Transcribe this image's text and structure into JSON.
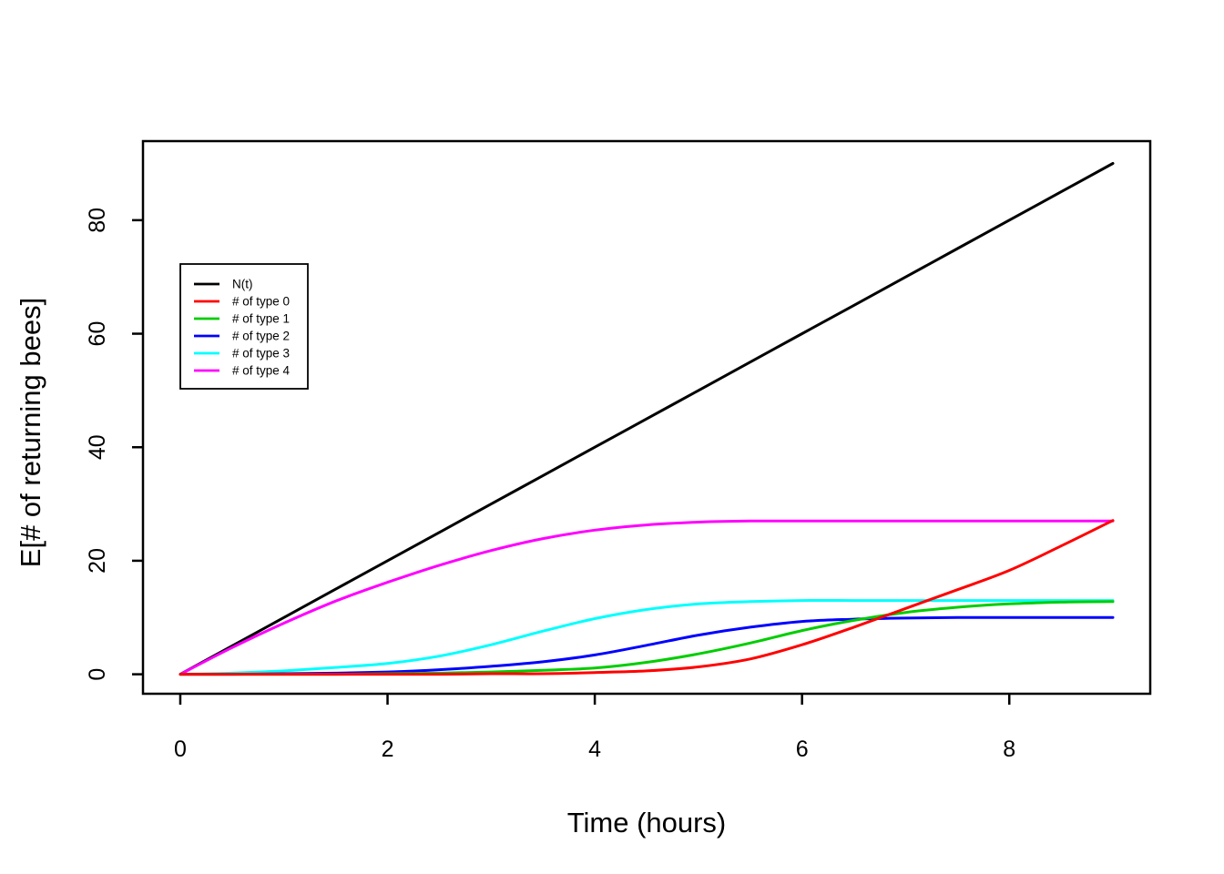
{
  "figure": {
    "background": "#ffffff",
    "axis_color": "#000000"
  },
  "chart_data": {
    "type": "line",
    "title": "",
    "xlabel": "Time (hours)",
    "ylabel": "E[# of returning bees]",
    "x_ticks": [
      0,
      2,
      4,
      6,
      8
    ],
    "y_ticks": [
      0,
      20,
      40,
      60,
      80
    ],
    "x_range": [
      -0.36,
      9.36
    ],
    "y_range": [
      -3.43,
      93.93
    ],
    "grid": "off",
    "legend_position": "upper-left",
    "x": [
      0,
      0.5,
      1,
      1.5,
      2,
      2.5,
      3,
      3.5,
      4,
      4.5,
      5,
      5.5,
      6,
      6.5,
      7,
      7.5,
      8,
      8.5,
      9
    ],
    "series": [
      {
        "name": "N(t)",
        "color": "#000000",
        "values": [
          0,
          5,
          10,
          15,
          20,
          25,
          30,
          35,
          40,
          45,
          50,
          55,
          60,
          65,
          70,
          75,
          80,
          85,
          90
        ]
      },
      {
        "name": "# of type 0",
        "color": "#FF0000",
        "values": [
          0,
          0,
          0,
          0,
          0,
          0,
          0.1,
          0.1,
          0.3,
          0.6,
          1.3,
          2.7,
          5.2,
          8.3,
          11.6,
          14.9,
          18.3,
          22.6,
          27.1
        ]
      },
      {
        "name": "# of type 1",
        "color": "#00CD00",
        "values": [
          0,
          0,
          0,
          0,
          0.1,
          0.2,
          0.4,
          0.7,
          1.1,
          2.1,
          3.6,
          5.5,
          7.7,
          9.5,
          10.9,
          11.8,
          12.4,
          12.7,
          12.8
        ]
      },
      {
        "name": "# of type 2",
        "color": "#0000FF",
        "values": [
          0,
          0,
          0.1,
          0.2,
          0.4,
          0.8,
          1.4,
          2.2,
          3.4,
          5.1,
          6.9,
          8.3,
          9.3,
          9.7,
          9.9,
          10,
          10,
          10,
          10
        ]
      },
      {
        "name": "# of type 3",
        "color": "#00FFFF",
        "values": [
          0,
          0.2,
          0.6,
          1.2,
          1.9,
          3.2,
          5.2,
          7.6,
          9.8,
          11.4,
          12.4,
          12.8,
          13,
          13,
          13,
          13,
          13,
          13,
          13
        ]
      },
      {
        "name": "# of type 4",
        "color": "#FF00FF",
        "values": [
          0,
          4.7,
          9,
          12.9,
          16.2,
          19.2,
          21.8,
          23.9,
          25.4,
          26.3,
          26.8,
          27,
          27,
          27,
          27,
          27,
          27,
          27,
          27
        ]
      }
    ],
    "legend_entries": [
      "N(t)",
      "# of type 0",
      "# of type 1",
      "# of type 2",
      "# of type 3",
      "# of type 4"
    ],
    "draw_order": [
      0,
      5,
      4,
      3,
      2,
      1
    ]
  }
}
